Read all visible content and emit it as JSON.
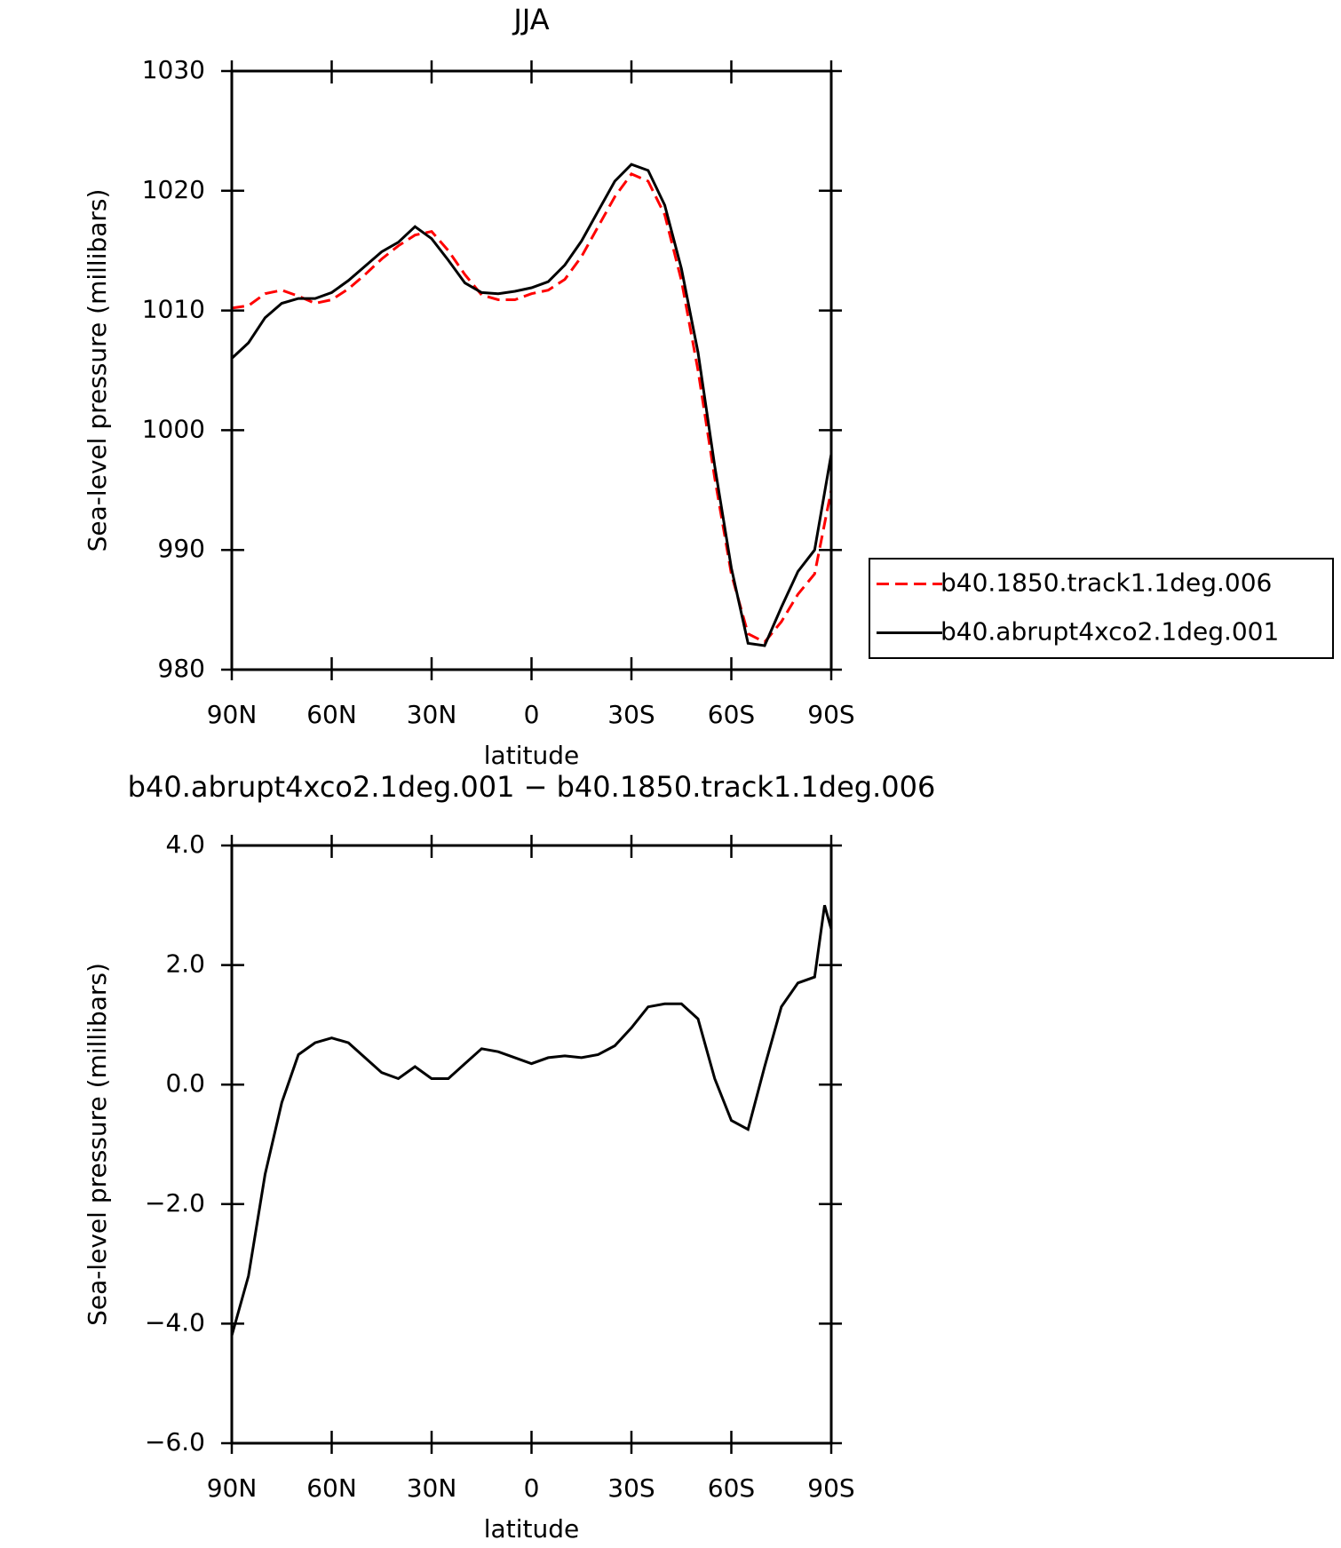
{
  "chart_data": [
    {
      "type": "line",
      "title": "JJA",
      "x_label": "latitude",
      "y_label": "Sea-level pressure (millibars)",
      "x": [
        90,
        85,
        80,
        75,
        70,
        65,
        60,
        55,
        50,
        45,
        40,
        35,
        30,
        25,
        20,
        15,
        10,
        5,
        0,
        -5,
        -10,
        -15,
        -20,
        -25,
        -30,
        -35,
        -40,
        -45,
        -50,
        -55,
        -60,
        -65,
        -70,
        -75,
        -80,
        -85,
        -90
      ],
      "xlim": [
        90,
        -90
      ],
      "xticks": [
        {
          "value": 90,
          "label": "90N"
        },
        {
          "value": 60,
          "label": "60N"
        },
        {
          "value": 30,
          "label": "30N"
        },
        0,
        {
          "value": -30,
          "label": "30S"
        },
        {
          "value": -60,
          "label": "60S"
        },
        {
          "value": -90,
          "label": "90S"
        }
      ],
      "ylim": [
        980,
        1030
      ],
      "yticks": [
        980,
        990,
        1000,
        1010,
        1020,
        1030
      ],
      "legend": "right",
      "series": [
        {
          "name": "b40.1850.track1.1deg.006",
          "color": "#ff0000",
          "line_style": "dashed",
          "values": [
            1010.2,
            1010.4,
            1011.4,
            1011.7,
            1011.2,
            1010.6,
            1010.9,
            1011.8,
            1013.0,
            1014.3,
            1015.4,
            1016.3,
            1016.6,
            1015.0,
            1013.0,
            1011.3,
            1010.9,
            1010.9,
            1011.4,
            1011.7,
            1012.6,
            1014.5,
            1017.0,
            1019.5,
            1021.4,
            1020.8,
            1018.0,
            1012.5,
            1005.0,
            996.0,
            988.0,
            983.0,
            982.3,
            984.0,
            986.3,
            988.0,
            995.0
          ]
        },
        {
          "name": "b40.abrupt4xco2.1deg.001",
          "color": "#000000",
          "line_style": "solid",
          "values": [
            1006.0,
            1007.3,
            1009.4,
            1010.6,
            1011.0,
            1011.0,
            1011.5,
            1012.5,
            1013.7,
            1014.9,
            1015.7,
            1017.0,
            1016.0,
            1014.2,
            1012.3,
            1011.5,
            1011.4,
            1011.6,
            1011.9,
            1012.4,
            1013.8,
            1015.8,
            1018.3,
            1020.8,
            1022.2,
            1021.7,
            1018.8,
            1013.5,
            1006.5,
            997.0,
            988.5,
            982.2,
            982.0,
            985.2,
            988.2,
            990.0,
            998.0
          ]
        }
      ]
    },
    {
      "type": "line",
      "title": "b40.abrupt4xco2.1deg.001 − b40.1850.track1.1deg.006",
      "x_label": "latitude",
      "y_label": "Sea-level pressure (millibars)",
      "x": [
        90,
        85,
        80,
        75,
        70,
        65,
        60,
        55,
        50,
        45,
        40,
        35,
        30,
        25,
        20,
        15,
        10,
        5,
        0,
        -5,
        -10,
        -15,
        -20,
        -25,
        -30,
        -35,
        -40,
        -45,
        -50,
        -55,
        -60,
        -65,
        -70,
        -75,
        -80,
        -85,
        -88,
        -90
      ],
      "xlim": [
        90,
        -90
      ],
      "xticks": [
        {
          "value": 90,
          "label": "90N"
        },
        {
          "value": 60,
          "label": "60N"
        },
        {
          "value": 30,
          "label": "30N"
        },
        0,
        {
          "value": -30,
          "label": "30S"
        },
        {
          "value": -60,
          "label": "60S"
        },
        {
          "value": -90,
          "label": "90S"
        }
      ],
      "ylim": [
        -6,
        4
      ],
      "yticks": [
        {
          "value": -6,
          "label": "−6.0"
        },
        {
          "value": -4,
          "label": "−4.0"
        },
        {
          "value": -2,
          "label": "−2.0"
        },
        {
          "value": 0,
          "label": "0.0"
        },
        {
          "value": 2,
          "label": "2.0"
        },
        {
          "value": 4,
          "label": "4.0"
        }
      ],
      "series": [
        {
          "color": "#000000",
          "line_style": "solid",
          "values": [
            -4.2,
            -3.2,
            -1.5,
            -0.3,
            0.5,
            0.7,
            0.78,
            0.7,
            0.45,
            0.2,
            0.1,
            0.3,
            0.1,
            0.1,
            0.35,
            0.6,
            0.55,
            0.45,
            0.35,
            0.45,
            0.48,
            0.45,
            0.5,
            0.65,
            0.95,
            1.3,
            1.35,
            1.35,
            1.1,
            0.1,
            -0.6,
            -0.75,
            0.3,
            1.3,
            1.7,
            1.8,
            3.0,
            2.6
          ]
        }
      ]
    }
  ]
}
